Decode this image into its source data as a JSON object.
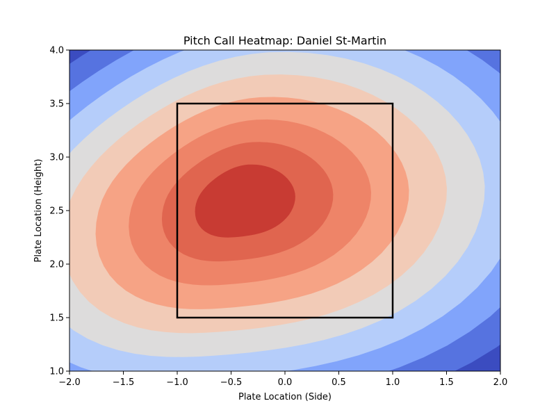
{
  "chart_data": {
    "type": "heatmap",
    "title": "Pitch Call Heatmap: Daniel St-Martin",
    "xlabel": "Plate Location (Side)",
    "ylabel": "Plate Location (Height)",
    "xlim": [
      -2.0,
      2.0
    ],
    "ylim": [
      1.0,
      4.0
    ],
    "x_ticks": [
      -2.0,
      -1.5,
      -1.0,
      -0.5,
      0.0,
      0.5,
      1.0,
      1.5,
      2.0
    ],
    "x_tick_labels": [
      "−2.0",
      "−1.5",
      "−1.0",
      "−0.5",
      "0.0",
      "0.5",
      "1.0",
      "1.5",
      "2.0"
    ],
    "y_ticks": [
      1.0,
      1.5,
      2.0,
      2.5,
      3.0,
      3.5,
      4.0
    ],
    "y_tick_labels": [
      "1.0",
      "1.5",
      "2.0",
      "2.5",
      "3.0",
      "3.5",
      "4.0"
    ],
    "colormap": "coolwarm",
    "peak_location": {
      "x": -0.4,
      "y": 2.6
    },
    "contour_levels": [
      {
        "level": 0,
        "color": "#3b4cc0"
      },
      {
        "level": 1,
        "color": "#5673e0"
      },
      {
        "level": 2,
        "color": "#81a4fb"
      },
      {
        "level": 3,
        "color": "#b5cdfa"
      },
      {
        "level": 4,
        "color": "#dddcdc"
      },
      {
        "level": 5,
        "color": "#f2cbb7"
      },
      {
        "level": 6,
        "color": "#f6a385"
      },
      {
        "level": 7,
        "color": "#ee8468"
      },
      {
        "level": 8,
        "color": "#e0654f"
      },
      {
        "level": 9,
        "color": "#c83b33"
      }
    ],
    "strike_zone": {
      "x": [
        -1.0,
        1.0
      ],
      "y": [
        1.5,
        3.5
      ],
      "color": "#000000"
    },
    "grid": false,
    "legend": "none"
  }
}
